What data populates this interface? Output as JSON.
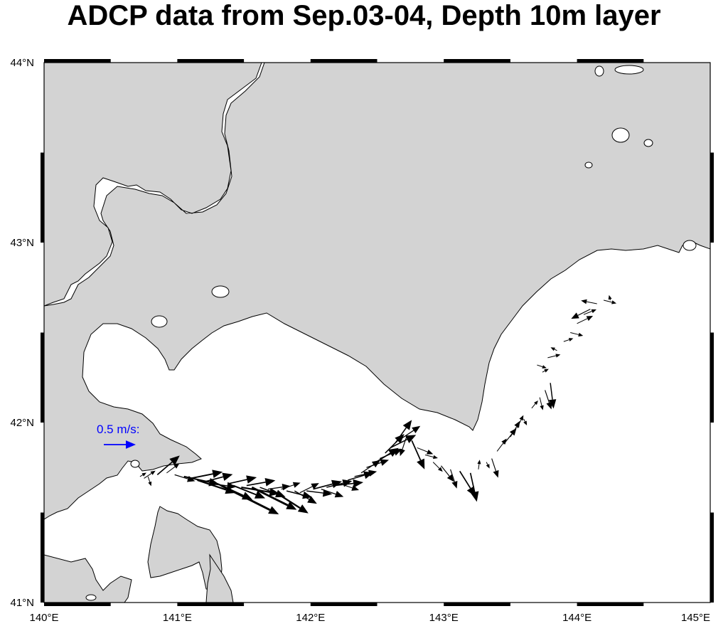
{
  "title": "ADCP data from Sep.03-04, Depth 10m layer",
  "axes": {
    "x_ticks": [
      "140°E",
      "141°E",
      "142°E",
      "143°E",
      "144°E",
      "145°E"
    ],
    "y_ticks": [
      "41°N",
      "42°N",
      "43°N",
      "44°N"
    ],
    "lon_range": [
      140,
      145
    ],
    "lat_range": [
      41,
      44
    ]
  },
  "scale": {
    "label": "0.5 m/s:",
    "speed": 0.5,
    "color": "#0000ff"
  },
  "colors": {
    "land": "#d3d3d3",
    "sea": "#ffffff",
    "arrow": "#000000",
    "frame": "#000000"
  },
  "vectors_note": "",
  "chart_data": {
    "type": "vector-field",
    "units": "m/s",
    "vectors": [
      {
        "lon": 140.72,
        "lat": 41.7,
        "u": 0.1,
        "v": 0.06
      },
      {
        "lon": 140.75,
        "lat": 41.69,
        "u": 0.18,
        "v": 0.12
      },
      {
        "lon": 140.78,
        "lat": 41.7,
        "u": 0.05,
        "v": -0.15
      },
      {
        "lon": 140.85,
        "lat": 41.71,
        "u": 0.35,
        "v": 0.3
      },
      {
        "lon": 140.92,
        "lat": 41.72,
        "u": 0.2,
        "v": 0.15
      },
      {
        "lon": 140.98,
        "lat": 41.71,
        "u": 0.32,
        "v": -0.1
      },
      {
        "lon": 141.05,
        "lat": 41.7,
        "u": 0.55,
        "v": -0.12
      },
      {
        "lon": 141.1,
        "lat": 41.69,
        "u": 0.5,
        "v": 0.1
      },
      {
        "lon": 141.15,
        "lat": 41.68,
        "u": 0.6,
        "v": -0.2
      },
      {
        "lon": 141.2,
        "lat": 41.67,
        "u": 0.45,
        "v": 0.12
      },
      {
        "lon": 141.25,
        "lat": 41.66,
        "u": 0.4,
        "v": -0.05
      },
      {
        "lon": 141.3,
        "lat": 41.66,
        "u": 0.55,
        "v": -0.25
      },
      {
        "lon": 141.33,
        "lat": 41.65,
        "u": 0.9,
        "v": -0.45
      },
      {
        "lon": 141.38,
        "lat": 41.66,
        "u": 0.45,
        "v": 0.1
      },
      {
        "lon": 141.42,
        "lat": 41.65,
        "u": 0.5,
        "v": -0.2
      },
      {
        "lon": 141.48,
        "lat": 41.64,
        "u": 0.6,
        "v": -0.1
      },
      {
        "lon": 141.52,
        "lat": 41.65,
        "u": 0.45,
        "v": 0.08
      },
      {
        "lon": 141.56,
        "lat": 41.64,
        "u": 0.7,
        "v": -0.35
      },
      {
        "lon": 141.62,
        "lat": 41.64,
        "u": 0.4,
        "v": -0.15
      },
      {
        "lon": 141.68,
        "lat": 41.63,
        "u": 0.35,
        "v": 0.05
      },
      {
        "lon": 141.72,
        "lat": 41.62,
        "u": 0.55,
        "v": -0.35
      },
      {
        "lon": 141.78,
        "lat": 41.63,
        "u": 0.3,
        "v": 0.1
      },
      {
        "lon": 141.82,
        "lat": 41.62,
        "u": 0.4,
        "v": -0.1
      },
      {
        "lon": 141.88,
        "lat": 41.62,
        "u": 0.35,
        "v": -0.2
      },
      {
        "lon": 141.92,
        "lat": 41.61,
        "u": 0.3,
        "v": 0.15
      },
      {
        "lon": 141.97,
        "lat": 41.62,
        "u": 0.4,
        "v": -0.05
      },
      {
        "lon": 142.02,
        "lat": 41.63,
        "u": 0.45,
        "v": 0.12
      },
      {
        "lon": 142.08,
        "lat": 41.63,
        "u": 0.35,
        "v": -0.12
      },
      {
        "lon": 142.12,
        "lat": 41.64,
        "u": 0.4,
        "v": 0.1
      },
      {
        "lon": 142.18,
        "lat": 41.65,
        "u": 0.45,
        "v": 0.05
      },
      {
        "lon": 142.22,
        "lat": 41.66,
        "u": 0.3,
        "v": -0.1
      },
      {
        "lon": 142.28,
        "lat": 41.68,
        "u": 0.4,
        "v": 0.12
      },
      {
        "lon": 142.33,
        "lat": 41.7,
        "u": 0.35,
        "v": 0.08
      },
      {
        "lon": 142.38,
        "lat": 41.72,
        "u": 0.3,
        "v": 0.2
      },
      {
        "lon": 142.42,
        "lat": 41.75,
        "u": 0.35,
        "v": 0.12
      },
      {
        "lon": 142.47,
        "lat": 41.77,
        "u": 0.4,
        "v": 0.25
      },
      {
        "lon": 142.52,
        "lat": 41.8,
        "u": 0.35,
        "v": 0.15
      },
      {
        "lon": 142.56,
        "lat": 41.83,
        "u": 0.3,
        "v": 0.3
      },
      {
        "lon": 142.6,
        "lat": 41.86,
        "u": 0.4,
        "v": 0.2
      },
      {
        "lon": 142.64,
        "lat": 41.89,
        "u": 0.25,
        "v": 0.35
      },
      {
        "lon": 142.68,
        "lat": 41.91,
        "u": 0.3,
        "v": 0.2
      },
      {
        "lon": 142.72,
        "lat": 41.92,
        "u": -0.1,
        "v": -0.3
      },
      {
        "lon": 142.76,
        "lat": 41.9,
        "u": 0.2,
        "v": -0.45
      },
      {
        "lon": 142.8,
        "lat": 41.86,
        "u": 0.25,
        "v": -0.1
      },
      {
        "lon": 142.86,
        "lat": 41.82,
        "u": 0.2,
        "v": -0.05
      },
      {
        "lon": 142.92,
        "lat": 41.78,
        "u": 0.15,
        "v": -0.15
      },
      {
        "lon": 142.98,
        "lat": 41.76,
        "u": 0.2,
        "v": -0.25
      },
      {
        "lon": 143.05,
        "lat": 41.74,
        "u": 0.1,
        "v": -0.3
      },
      {
        "lon": 143.12,
        "lat": 41.73,
        "u": 0.25,
        "v": -0.4
      },
      {
        "lon": 143.2,
        "lat": 41.72,
        "u": 0.1,
        "v": -0.45
      },
      {
        "lon": 143.26,
        "lat": 41.74,
        "u": 0.02,
        "v": 0.15
      },
      {
        "lon": 143.32,
        "lat": 41.78,
        "u": 0.05,
        "v": -0.1
      },
      {
        "lon": 143.36,
        "lat": 41.8,
        "u": 0.1,
        "v": -0.3
      },
      {
        "lon": 143.4,
        "lat": 41.84,
        "u": 0.15,
        "v": 0.2
      },
      {
        "lon": 143.45,
        "lat": 41.88,
        "u": 0.2,
        "v": 0.25
      },
      {
        "lon": 143.5,
        "lat": 41.92,
        "u": 0.15,
        "v": 0.25
      },
      {
        "lon": 143.55,
        "lat": 41.97,
        "u": 0.1,
        "v": 0.2
      },
      {
        "lon": 143.6,
        "lat": 42.02,
        "u": 0.05,
        "v": -0.1
      },
      {
        "lon": 143.66,
        "lat": 42.08,
        "u": 0.1,
        "v": 0.12
      },
      {
        "lon": 143.72,
        "lat": 42.14,
        "u": 0.05,
        "v": -0.2
      },
      {
        "lon": 143.76,
        "lat": 42.18,
        "u": 0.1,
        "v": -0.3
      },
      {
        "lon": 143.8,
        "lat": 42.22,
        "u": 0.05,
        "v": -0.4
      },
      {
        "lon": 143.74,
        "lat": 42.28,
        "u": 0.1,
        "v": 0.05
      },
      {
        "lon": 143.7,
        "lat": 42.32,
        "u": 0.15,
        "v": -0.05
      },
      {
        "lon": 143.78,
        "lat": 42.36,
        "u": 0.2,
        "v": 0.05
      },
      {
        "lon": 143.85,
        "lat": 42.4,
        "u": -0.1,
        "v": 0.05
      },
      {
        "lon": 143.9,
        "lat": 42.45,
        "u": 0.15,
        "v": 0.05
      },
      {
        "lon": 143.95,
        "lat": 42.5,
        "u": 0.2,
        "v": -0.05
      },
      {
        "lon": 144.0,
        "lat": 42.55,
        "u": 0.25,
        "v": 0.12
      },
      {
        "lon": 144.05,
        "lat": 42.6,
        "u": 0.2,
        "v": 0.08
      },
      {
        "lon": 144.1,
        "lat": 42.63,
        "u": -0.3,
        "v": -0.15
      },
      {
        "lon": 144.15,
        "lat": 42.66,
        "u": -0.25,
        "v": 0.05
      },
      {
        "lon": 144.2,
        "lat": 42.68,
        "u": 0.2,
        "v": -0.05
      },
      {
        "lon": 144.25,
        "lat": 42.68,
        "u": -0.02,
        "v": 0.08
      }
    ]
  }
}
